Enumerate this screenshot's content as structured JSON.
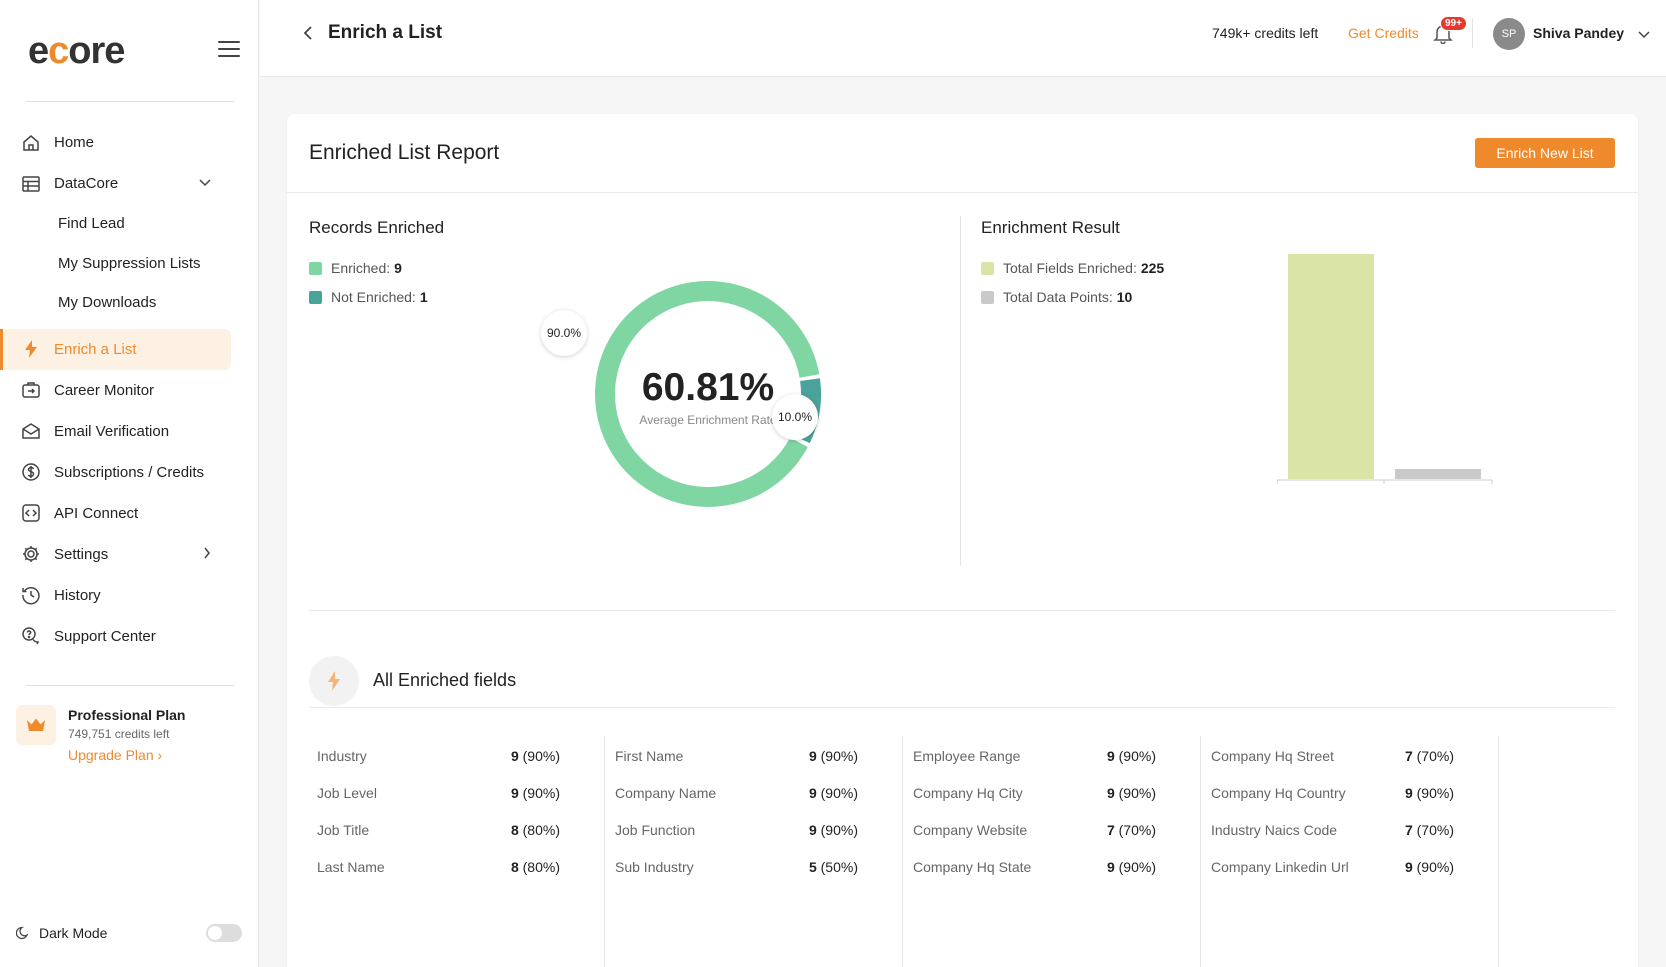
{
  "app": {
    "logo": "ecore"
  },
  "sidebar": {
    "items": [
      {
        "label": "Home",
        "icon": "home-icon"
      },
      {
        "label": "DataCore",
        "icon": "table-icon"
      },
      {
        "label": "Find Lead"
      },
      {
        "label": "My Suppression Lists"
      },
      {
        "label": "My Downloads"
      },
      {
        "label": "Enrich a List",
        "icon": "bolt-icon"
      },
      {
        "label": "Career Monitor",
        "icon": "career-icon"
      },
      {
        "label": "Email Verification",
        "icon": "email-icon"
      },
      {
        "label": "Subscriptions / Credits",
        "icon": "dollar-icon"
      },
      {
        "label": "API Connect",
        "icon": "code-icon"
      },
      {
        "label": "Settings",
        "icon": "gear-icon"
      },
      {
        "label": "History",
        "icon": "history-icon"
      },
      {
        "label": "Support Center",
        "icon": "support-icon"
      }
    ],
    "plan": {
      "title": "Professional Plan",
      "credits": "749,751 credits left",
      "upgrade": "Upgrade Plan"
    },
    "dark_mode": "Dark Mode"
  },
  "topbar": {
    "title": "Enrich a List",
    "credits_left": "749k+ credits left",
    "get_credits": "Get Credits",
    "notif_badge": "99+",
    "avatar_initials": "SP",
    "username": "Shiva Pandey"
  },
  "report": {
    "title": "Enriched List Report",
    "enrich_new": "Enrich New List",
    "records": {
      "title": "Records Enriched",
      "legend": [
        {
          "label": "Enriched:",
          "value": "9",
          "color": "#7fd6a2"
        },
        {
          "label": "Not Enriched:",
          "value": "1",
          "color": "#4aa39a"
        }
      ],
      "avg_rate": "60.81%",
      "avg_label": "Average Enrichment Rate",
      "enriched_pct_label": "90.0%",
      "not_enriched_pct_label": "10.0%",
      "enriched_fraction": 0.9,
      "not_enriched_fraction": 0.1
    },
    "result": {
      "title": "Enrichment Result",
      "legend": [
        {
          "label": "Total Fields Enriched:",
          "value": "225",
          "color": "#d9e4a6"
        },
        {
          "label": "Total Data Points:",
          "value": "10",
          "color": "#c9c9c9"
        }
      ]
    },
    "all_fields_title": "All Enriched fields",
    "fields": [
      [
        {
          "name": "Industry",
          "count": "9",
          "pct": "(90%)"
        },
        {
          "name": "Job Level",
          "count": "9",
          "pct": "(90%)"
        },
        {
          "name": "Job Title",
          "count": "8",
          "pct": "(80%)"
        },
        {
          "name": "Last Name",
          "count": "8",
          "pct": "(80%)"
        }
      ],
      [
        {
          "name": "First Name",
          "count": "9",
          "pct": "(90%)"
        },
        {
          "name": "Company Name",
          "count": "9",
          "pct": "(90%)"
        },
        {
          "name": "Job Function",
          "count": "9",
          "pct": "(90%)"
        },
        {
          "name": "Sub Industry",
          "count": "5",
          "pct": "(50%)"
        }
      ],
      [
        {
          "name": "Employee Range",
          "count": "9",
          "pct": "(90%)"
        },
        {
          "name": "Company Hq City",
          "count": "9",
          "pct": "(90%)"
        },
        {
          "name": "Company Website",
          "count": "7",
          "pct": "(70%)"
        },
        {
          "name": "Company Hq State",
          "count": "9",
          "pct": "(90%)"
        }
      ],
      [
        {
          "name": "Company Hq Street",
          "count": "7",
          "pct": "(70%)"
        },
        {
          "name": "Company Hq Country",
          "count": "9",
          "pct": "(90%)"
        },
        {
          "name": "Industry Naics Code",
          "count": "7",
          "pct": "(70%)"
        },
        {
          "name": "Company Linkedin Url",
          "count": "9",
          "pct": "(90%)"
        }
      ]
    ]
  },
  "chart_data": [
    {
      "type": "pie",
      "title": "Records Enriched",
      "categories": [
        "Enriched",
        "Not Enriched"
      ],
      "values": [
        9,
        1
      ],
      "percent_labels": [
        "90.0%",
        "10.0%"
      ],
      "center_text": "60.81%",
      "colors": [
        "#7fd6a2",
        "#4aa39a"
      ]
    },
    {
      "type": "bar",
      "title": "Enrichment Result",
      "categories": [
        "Total Fields Enriched",
        "Total Data Points"
      ],
      "values": [
        225,
        10
      ],
      "colors": [
        "#d9e4a6",
        "#c9c9c9"
      ]
    }
  ]
}
